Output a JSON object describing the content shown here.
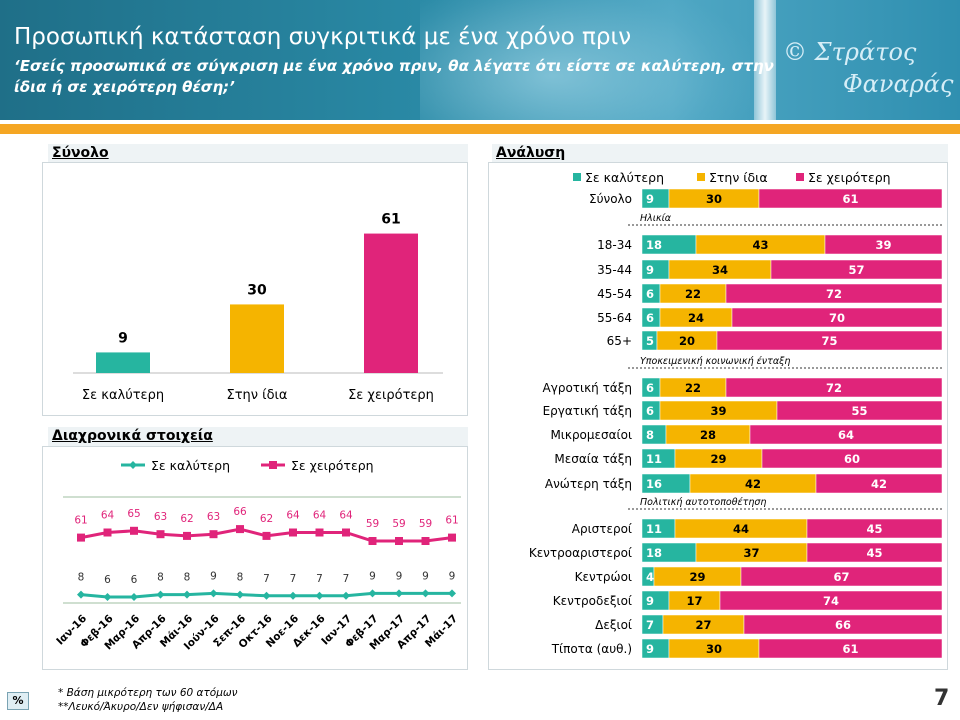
{
  "header": {
    "title": "Προσωπική κατάσταση συγκριτικά με ένα χρόνο πριν",
    "subtitle": "‘Εσείς προσωπικά σε σύγκριση με ένα χρόνο πριν, θα λέγατε ότι είστε σε καλύτερη, στην ίδια ή σε χειρότερη θέση;’",
    "copyright_line1": "© Στράτος",
    "copyright_line2": "Φαναράς"
  },
  "colors": {
    "better": "#26b5a0",
    "same": "#f5b400",
    "worse": "#e0247a",
    "orange_bar": "#f5a623"
  },
  "panels": {
    "total": "Σύνολο",
    "trend": "Διαχρονικά στοιχεία",
    "analysis": "Ανάλυση"
  },
  "chart_data": [
    {
      "type": "bar",
      "title": "Σύνολο",
      "categories": [
        "Σε καλύτερη",
        "Στην ίδια",
        "Σε χειρότερη"
      ],
      "values": [
        9,
        30,
        61
      ],
      "colors": [
        "#26b5a0",
        "#f5b400",
        "#e0247a"
      ]
    },
    {
      "type": "line",
      "title": "Διαχρονικά στοιχεία",
      "x": [
        "Ιαν-16",
        "Φεβ-16",
        "Μαρ-16",
        "Απρ-16",
        "Μάι-16",
        "Ιούν-16",
        "Σεπ-16",
        "Οκτ-16",
        "Νοε-16",
        "Δεκ-16",
        "Ιαν-17",
        "Φεβ-17",
        "Μαρ-17",
        "Απρ-17",
        "Μάι-17"
      ],
      "series": [
        {
          "name": "Σε καλύτερη",
          "color": "#26b5a0",
          "values": [
            8,
            6,
            6,
            8,
            8,
            9,
            8,
            7,
            7,
            7,
            7,
            9,
            9,
            9,
            9
          ]
        },
        {
          "name": "Σε χειρότερη",
          "color": "#e0247a",
          "values": [
            61,
            64,
            65,
            63,
            62,
            63,
            66,
            62,
            64,
            64,
            64,
            59,
            59,
            59,
            61
          ]
        }
      ],
      "legend": "top"
    },
    {
      "type": "bar",
      "title": "Ανάλυση",
      "orientation": "horizontal-stacked",
      "legend": "top",
      "series_names": [
        "Σε καλύτερη",
        "Στην ίδια",
        "Σε χειρότερη"
      ],
      "groups": [
        {
          "header": "",
          "rows": [
            {
              "label": "Σύνολο",
              "values": [
                9,
                30,
                61
              ]
            }
          ]
        },
        {
          "header": "Ηλικία",
          "rows": [
            {
              "label": "18-34",
              "values": [
                18,
                43,
                39
              ]
            },
            {
              "label": "35-44",
              "values": [
                9,
                34,
                57
              ]
            },
            {
              "label": "45-54",
              "values": [
                6,
                22,
                72
              ]
            },
            {
              "label": "55-64",
              "values": [
                6,
                24,
                70
              ]
            },
            {
              "label": "65+",
              "values": [
                5,
                20,
                75
              ]
            }
          ]
        },
        {
          "header": "Υποκειμενική κοινωνική ένταξη",
          "rows": [
            {
              "label": "Αγροτική τάξη",
              "values": [
                6,
                22,
                72
              ]
            },
            {
              "label": "Εργατική τάξη",
              "values": [
                6,
                39,
                55
              ]
            },
            {
              "label": "Μικρομεσαίοι",
              "values": [
                8,
                28,
                64
              ]
            },
            {
              "label": "Μεσαία τάξη",
              "values": [
                11,
                29,
                60
              ]
            },
            {
              "label": "Ανώτερη τάξη",
              "values": [
                16,
                42,
                42
              ]
            }
          ]
        },
        {
          "header": "Πολιτική αυτοτοποθέτηση",
          "rows": [
            {
              "label": "Αριστεροί",
              "values": [
                11,
                44,
                45
              ]
            },
            {
              "label": "Κεντροαριστεροί",
              "values": [
                18,
                37,
                45
              ]
            },
            {
              "label": "Κεντρώοι",
              "values": [
                4,
                29,
                67
              ]
            },
            {
              "label": "Κεντροδεξιοί",
              "values": [
                9,
                17,
                74
              ]
            },
            {
              "label": "Δεξιοί",
              "values": [
                7,
                27,
                66
              ]
            },
            {
              "label": "Τίποτα (αυθ.)",
              "values": [
                9,
                30,
                61
              ]
            }
          ]
        }
      ]
    }
  ],
  "footer": {
    "pct_label": "%",
    "note1": "* Βάση μικρότερη των 60 ατόμων",
    "note2": "**Λευκό/Άκυρο/Δεν ψήφισαν/ΔΑ",
    "page_number": "7"
  }
}
